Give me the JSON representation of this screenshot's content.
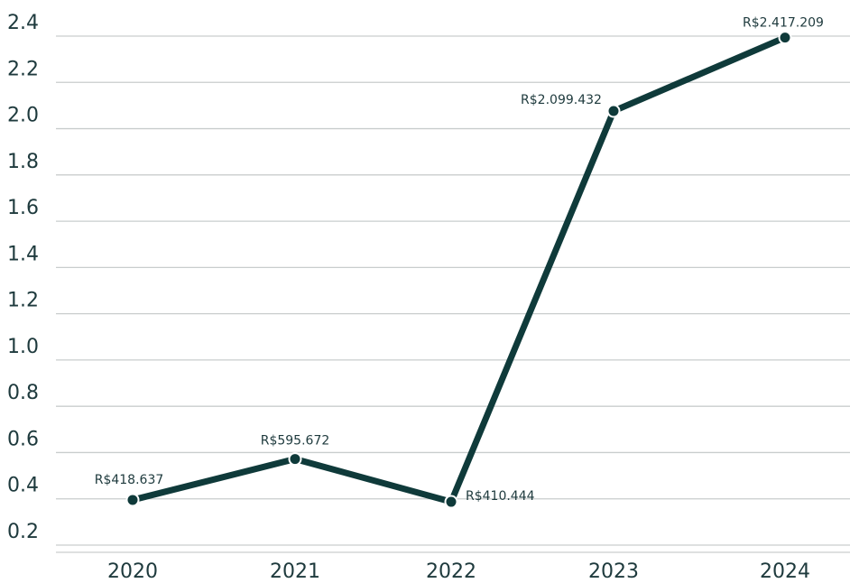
{
  "chart_data": {
    "type": "line",
    "categories": [
      "2020",
      "2021",
      "2022",
      "2023",
      "2024"
    ],
    "y_ticks": [
      "0.2",
      "0.4",
      "0.6",
      "0.8",
      "1.0",
      "1.2",
      "1.4",
      "1.6",
      "1.8",
      "2.0",
      "2.2",
      "2.4"
    ],
    "ylim": [
      0.2,
      2.4
    ],
    "grid": true,
    "series": [
      {
        "values": [
          0.418637,
          0.595672,
          0.410444,
          2.099432,
          2.417209
        ],
        "data_labels": [
          "R$418.637",
          "R$595.672",
          "R$410.444",
          "R$2.099.432",
          "R$2.417.209"
        ]
      }
    ],
    "colors": {
      "line": "#0f3a3a",
      "grid": "#c9cdcd",
      "text": "#1e3a3d",
      "marker_stroke": "#ffffff"
    }
  }
}
